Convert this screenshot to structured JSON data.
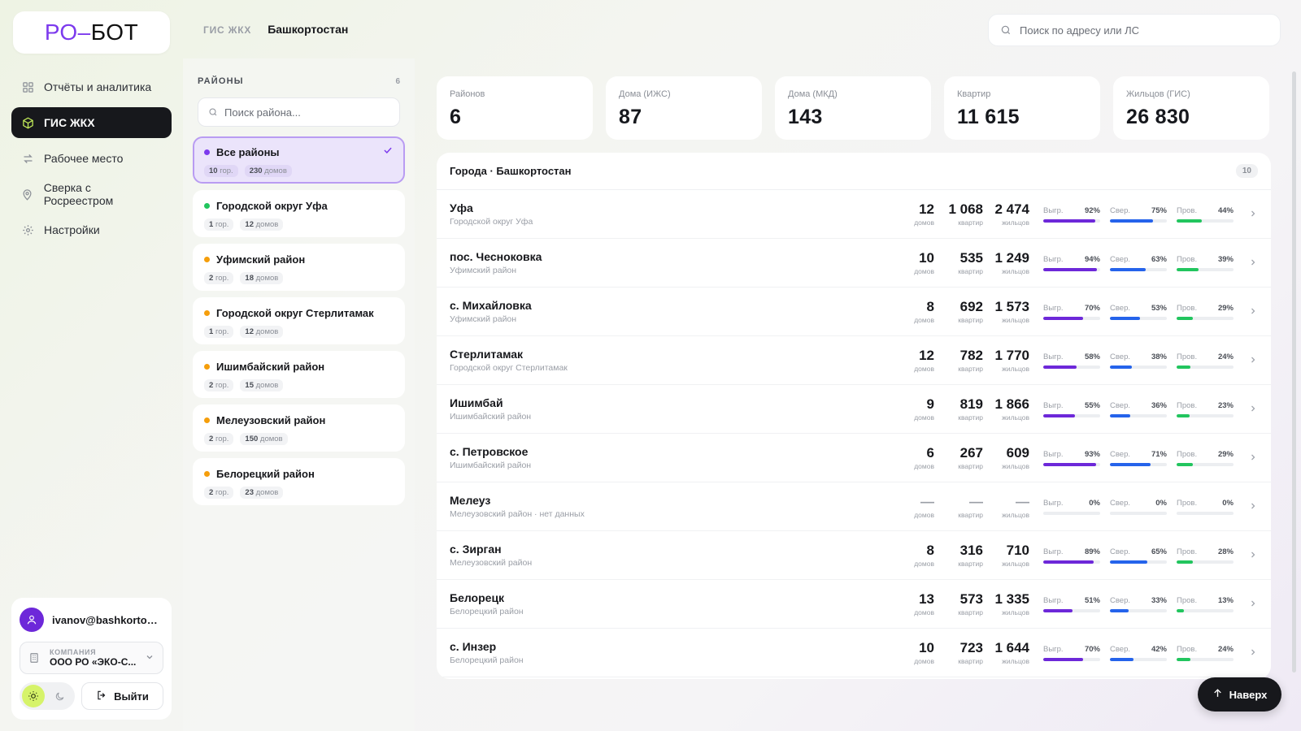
{
  "app": {
    "logo_part1": "РО",
    "logo_dash": "–",
    "logo_part2": "БОТ"
  },
  "nav": [
    {
      "label": "Отчёты и аналитика",
      "icon": "grid-icon",
      "active": false
    },
    {
      "label": "ГИС ЖКХ",
      "icon": "cube-icon",
      "active": true
    },
    {
      "label": "Рабочее место",
      "icon": "swap-icon",
      "active": false
    },
    {
      "label": "Сверка с Росреестром",
      "icon": "map-pin-icon",
      "active": false
    },
    {
      "label": "Настройки",
      "icon": "gear-icon",
      "active": false
    }
  ],
  "user": {
    "email": "ivanov@bashkortost...",
    "company_label": "КОМПАНИЯ",
    "company_name": "ООО РО «ЭКО-С...",
    "logout_label": "Выйти"
  },
  "header": {
    "crumb_section": "ГИС ЖКХ",
    "crumb_region": "Башкортостан",
    "search_placeholder": "Поиск по адресу или ЛС"
  },
  "districts": {
    "title": "РАЙОНЫ",
    "count": "6",
    "search_placeholder": "Поиск района...",
    "items": [
      {
        "name": "Все районы",
        "cities": "10",
        "cities_unit": "гор.",
        "houses": "230",
        "houses_unit": "домов",
        "color": "#7c3aed",
        "active": true
      },
      {
        "name": "Городской округ Уфа",
        "cities": "1",
        "cities_unit": "гор.",
        "houses": "12",
        "houses_unit": "домов",
        "color": "#22c55e",
        "active": false
      },
      {
        "name": "Уфимский район",
        "cities": "2",
        "cities_unit": "гор.",
        "houses": "18",
        "houses_unit": "домов",
        "color": "#f59e0b",
        "active": false
      },
      {
        "name": "Городской округ Стерлитамак",
        "cities": "1",
        "cities_unit": "гор.",
        "houses": "12",
        "houses_unit": "домов",
        "color": "#f59e0b",
        "active": false
      },
      {
        "name": "Ишимбайский район",
        "cities": "2",
        "cities_unit": "гор.",
        "houses": "15",
        "houses_unit": "домов",
        "color": "#f59e0b",
        "active": false
      },
      {
        "name": "Мелеузовский район",
        "cities": "2",
        "cities_unit": "гор.",
        "houses": "150",
        "houses_unit": "домов",
        "color": "#f59e0b",
        "active": false
      },
      {
        "name": "Белорецкий район",
        "cities": "2",
        "cities_unit": "гор.",
        "houses": "23",
        "houses_unit": "домов",
        "color": "#f59e0b",
        "active": false
      }
    ]
  },
  "stats": [
    {
      "label": "Районов",
      "value": "6"
    },
    {
      "label": "Дома (ИЖС)",
      "value": "87"
    },
    {
      "label": "Дома (МКД)",
      "value": "143"
    },
    {
      "label": "Квартир",
      "value": "11 615"
    },
    {
      "label": "Жильцов (ГИС)",
      "value": "26 830"
    }
  ],
  "cities": {
    "title": "Города · Башкортостан",
    "count": "10",
    "labels": {
      "houses": "домов",
      "flats": "квартир",
      "residents": "жильцов",
      "upload": "Выгр.",
      "reconcile": "Свер.",
      "check": "Пров."
    },
    "colors": {
      "upload": "#6d28d9",
      "reconcile": "#2563eb",
      "check": "#22c55e"
    },
    "rows": [
      {
        "name": "Уфа",
        "sub": "Городской округ Уфа",
        "houses": "12",
        "flats": "1 068",
        "residents": "2 474",
        "upload": 92,
        "reconcile": 75,
        "check": 44
      },
      {
        "name": "пос. Чесноковка",
        "sub": "Уфимский район",
        "houses": "10",
        "flats": "535",
        "residents": "1 249",
        "upload": 94,
        "reconcile": 63,
        "check": 39
      },
      {
        "name": "с. Михайловка",
        "sub": "Уфимский район",
        "houses": "8",
        "flats": "692",
        "residents": "1 573",
        "upload": 70,
        "reconcile": 53,
        "check": 29
      },
      {
        "name": "Стерлитамак",
        "sub": "Городской округ Стерлитамак",
        "houses": "12",
        "flats": "782",
        "residents": "1 770",
        "upload": 58,
        "reconcile": 38,
        "check": 24
      },
      {
        "name": "Ишимбай",
        "sub": "Ишимбайский район",
        "houses": "9",
        "flats": "819",
        "residents": "1 866",
        "upload": 55,
        "reconcile": 36,
        "check": 23
      },
      {
        "name": "с. Петровское",
        "sub": "Ишимбайский район",
        "houses": "6",
        "flats": "267",
        "residents": "609",
        "upload": 93,
        "reconcile": 71,
        "check": 29
      },
      {
        "name": "Мелеуз",
        "sub": "Мелеузовский район · нет данных",
        "houses": "—",
        "flats": "—",
        "residents": "—",
        "upload": 0,
        "reconcile": 0,
        "check": 0
      },
      {
        "name": "с. Зирган",
        "sub": "Мелеузовский район",
        "houses": "8",
        "flats": "316",
        "residents": "710",
        "upload": 89,
        "reconcile": 65,
        "check": 28
      },
      {
        "name": "Белорецк",
        "sub": "Белорецкий район",
        "houses": "13",
        "flats": "573",
        "residents": "1 335",
        "upload": 51,
        "reconcile": 33,
        "check": 13
      },
      {
        "name": "с. Инзер",
        "sub": "Белорецкий район",
        "houses": "10",
        "flats": "723",
        "residents": "1 644",
        "upload": 70,
        "reconcile": 42,
        "check": 24
      }
    ]
  },
  "top_button": "Наверх"
}
